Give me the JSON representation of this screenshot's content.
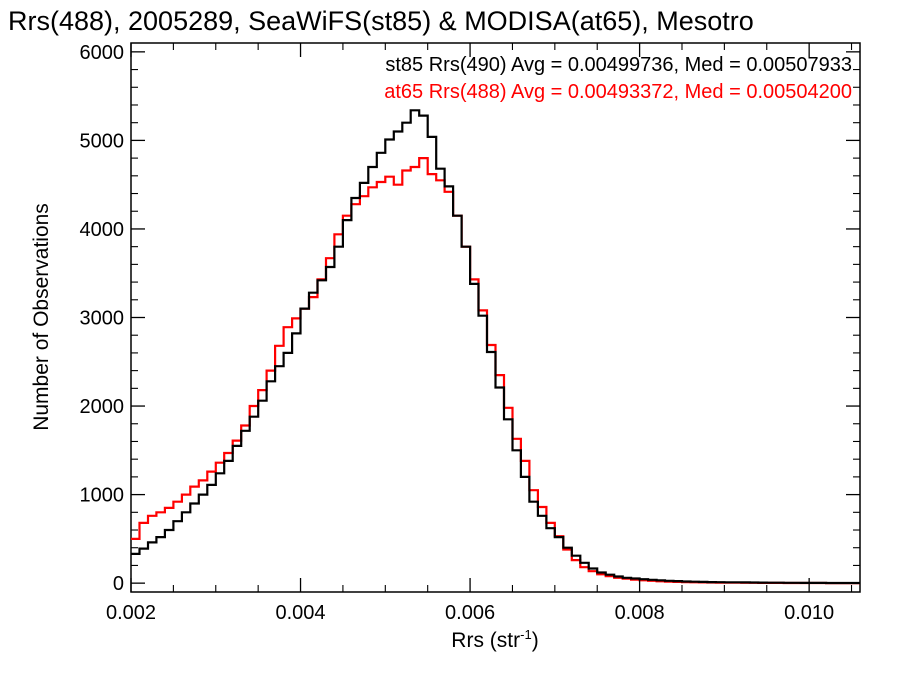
{
  "chart_data": {
    "type": "line",
    "title": "Rrs(488), 2005289, SeaWiFS(st85) & MODISA(at65), Mesotro",
    "xlabel": {
      "prefix": "Rrs (str",
      "sup": "-1",
      "suffix": ")"
    },
    "ylabel": "Number of Observations",
    "xlim": [
      0.002,
      0.0106
    ],
    "ylim": [
      -100,
      6100
    ],
    "xticks": [
      0.002,
      0.004,
      0.006,
      0.008,
      0.01
    ],
    "xtick_labels": [
      "0.002",
      "0.004",
      "0.006",
      "0.008",
      "0.010"
    ],
    "yticks": [
      0,
      1000,
      2000,
      3000,
      4000,
      5000,
      6000
    ],
    "ytick_labels": [
      "0",
      "1000",
      "2000",
      "3000",
      "4000",
      "5000",
      "6000"
    ],
    "grid": false,
    "legend_placement": "top-right",
    "series": [
      {
        "name": "st85 Rrs(490) Avg = 0.00499736, Med = 0.00507933",
        "color": "#000000",
        "step": "post",
        "x": [
          0.002,
          0.0021,
          0.0022,
          0.0023,
          0.0024,
          0.0025,
          0.0026,
          0.0027,
          0.0028,
          0.0029,
          0.003,
          0.0031,
          0.0032,
          0.0033,
          0.0034,
          0.0035,
          0.0036,
          0.0037,
          0.0038,
          0.0039,
          0.004,
          0.0041,
          0.0042,
          0.0043,
          0.0044,
          0.0045,
          0.0046,
          0.0047,
          0.0048,
          0.0049,
          0.005,
          0.0051,
          0.0052,
          0.0053,
          0.0054,
          0.0055,
          0.0056,
          0.0057,
          0.0058,
          0.0059,
          0.006,
          0.0061,
          0.0062,
          0.0063,
          0.0064,
          0.0065,
          0.0066,
          0.0067,
          0.0068,
          0.0069,
          0.007,
          0.0071,
          0.0072,
          0.0073,
          0.0074,
          0.0075,
          0.0076,
          0.0077,
          0.0078,
          0.0079,
          0.008,
          0.0081,
          0.0082,
          0.0083,
          0.0084,
          0.0085,
          0.0086,
          0.0087,
          0.0088,
          0.0089,
          0.009,
          0.0091,
          0.0092,
          0.0093,
          0.0094,
          0.0095,
          0.0096,
          0.0097,
          0.0098,
          0.0099,
          0.01,
          0.0101,
          0.0102,
          0.0103,
          0.0104,
          0.0105
        ],
        "values": [
          330,
          390,
          460,
          520,
          600,
          700,
          800,
          900,
          1000,
          1110,
          1240,
          1380,
          1550,
          1720,
          1880,
          2060,
          2280,
          2450,
          2600,
          2820,
          3100,
          3280,
          3420,
          3570,
          3800,
          4100,
          4350,
          4520,
          4700,
          4860,
          5010,
          5100,
          5200,
          5340,
          5280,
          5040,
          4680,
          4480,
          4150,
          3800,
          3380,
          3020,
          2610,
          2210,
          1850,
          1500,
          1200,
          920,
          760,
          620,
          520,
          400,
          310,
          230,
          165,
          120,
          95,
          75,
          60,
          52,
          44,
          38,
          32,
          27,
          23,
          19,
          16,
          14,
          12,
          11,
          10,
          9,
          8,
          7,
          6,
          5,
          5,
          4,
          4,
          3,
          3,
          3,
          2,
          2,
          2,
          2
        ]
      },
      {
        "name": "at65 Rrs(488) Avg = 0.00493372, Med = 0.00504200",
        "color": "#ff0000",
        "step": "post",
        "x": [
          0.002,
          0.0021,
          0.0022,
          0.0023,
          0.0024,
          0.0025,
          0.0026,
          0.0027,
          0.0028,
          0.0029,
          0.003,
          0.0031,
          0.0032,
          0.0033,
          0.0034,
          0.0035,
          0.0036,
          0.0037,
          0.0038,
          0.0039,
          0.004,
          0.0041,
          0.0042,
          0.0043,
          0.0044,
          0.0045,
          0.0046,
          0.0047,
          0.0048,
          0.0049,
          0.005,
          0.0051,
          0.0052,
          0.0053,
          0.0054,
          0.0055,
          0.0056,
          0.0057,
          0.0058,
          0.0059,
          0.006,
          0.0061,
          0.0062,
          0.0063,
          0.0064,
          0.0065,
          0.0066,
          0.0067,
          0.0068,
          0.0069,
          0.007,
          0.0071,
          0.0072,
          0.0073,
          0.0074,
          0.0075,
          0.0076,
          0.0077,
          0.0078,
          0.0079,
          0.008,
          0.0081,
          0.0082,
          0.0083,
          0.0084,
          0.0085,
          0.0086,
          0.0087,
          0.0088,
          0.0089,
          0.009,
          0.0091,
          0.0092,
          0.0093,
          0.0094,
          0.0095,
          0.0096,
          0.0097,
          0.0098,
          0.0099,
          0.01,
          0.0101,
          0.0102,
          0.0103,
          0.0104,
          0.0105
        ],
        "values": [
          500,
          680,
          760,
          800,
          850,
          920,
          1000,
          1090,
          1160,
          1260,
          1360,
          1470,
          1610,
          1780,
          2000,
          2180,
          2400,
          2680,
          2890,
          2990,
          3100,
          3230,
          3430,
          3670,
          3940,
          4150,
          4280,
          4370,
          4470,
          4530,
          4590,
          4500,
          4660,
          4700,
          4800,
          4620,
          4550,
          4420,
          4150,
          3800,
          3430,
          3080,
          2690,
          2350,
          1980,
          1630,
          1380,
          1050,
          860,
          680,
          530,
          380,
          260,
          180,
          135,
          100,
          80,
          60,
          50,
          40,
          32,
          26,
          21,
          17,
          14,
          12,
          10,
          8,
          7,
          6,
          5,
          5,
          4,
          4,
          3,
          3,
          3,
          2,
          2,
          2,
          2,
          2,
          1,
          1,
          1,
          1
        ]
      }
    ]
  }
}
